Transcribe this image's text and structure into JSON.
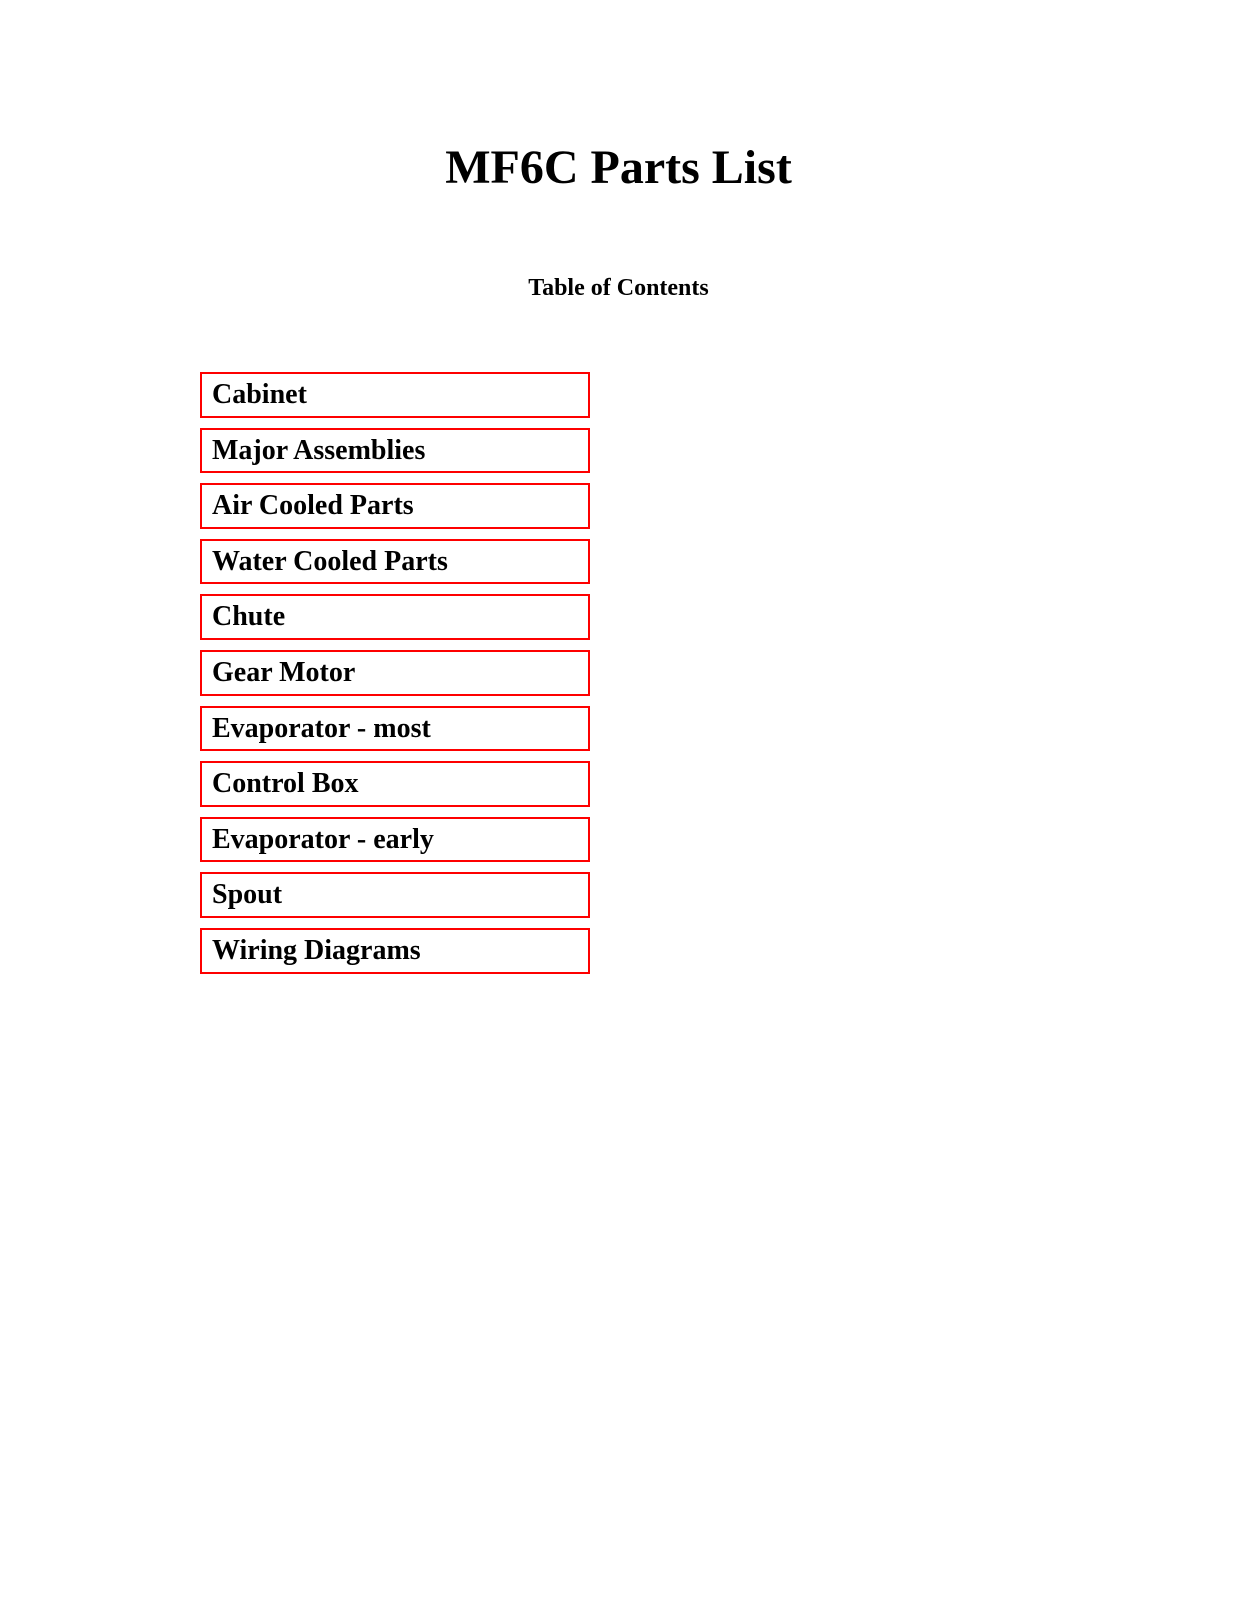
{
  "title": "MF6C Parts List",
  "subtitle": "Table of Contents",
  "toc_items": [
    "Cabinet",
    "Major Assemblies",
    "Air Cooled Parts",
    "Water Cooled Parts",
    "Chute",
    "Gear Motor",
    "Evaporator - most",
    "Control Box",
    "Evaporator - early",
    "Spout",
    "Wiring Diagrams"
  ],
  "border_color": "#fe0000",
  "text_color": "#000000",
  "background_color": "#ffffff"
}
